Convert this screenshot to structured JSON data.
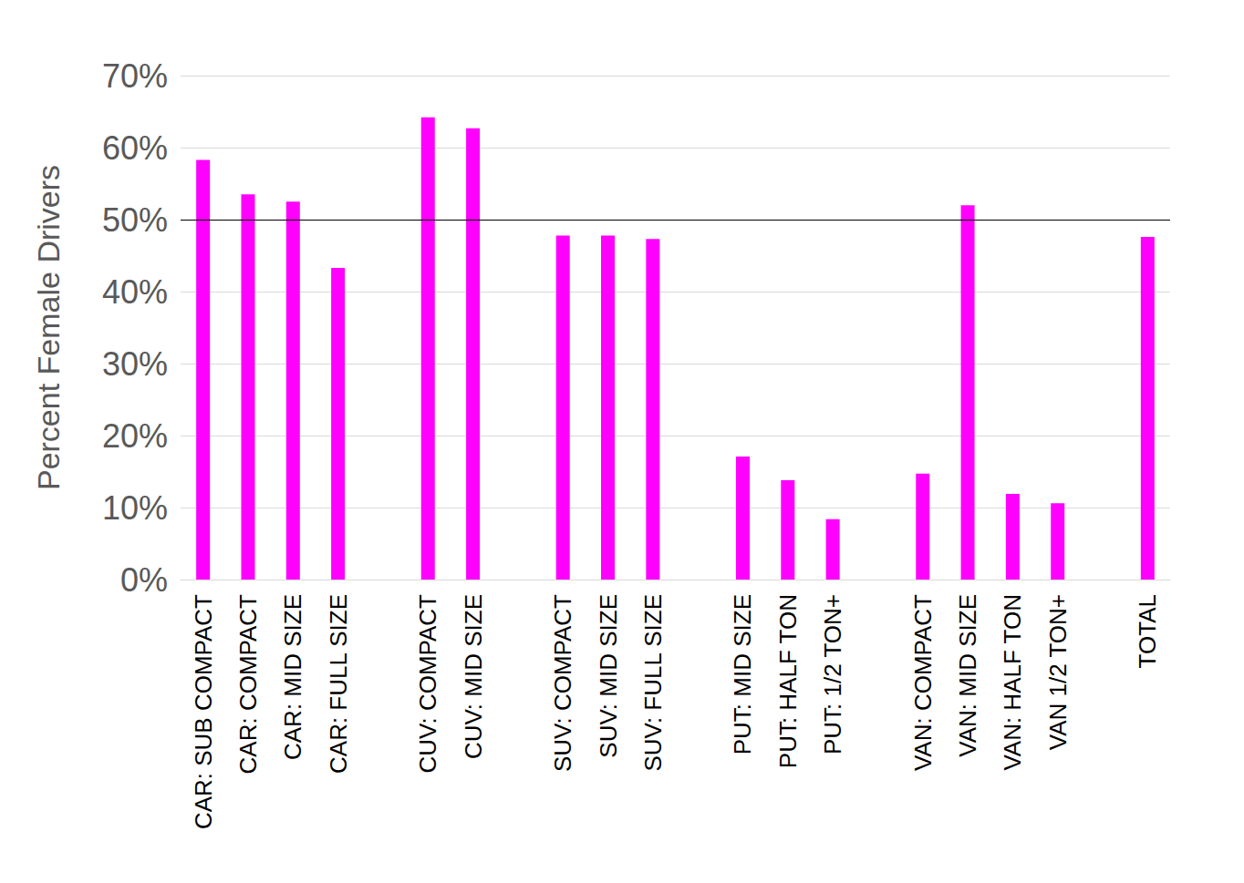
{
  "chart_data": {
    "type": "bar",
    "ylabel": "Percent Female Drivers",
    "categories": [
      "CAR: SUB COMPACT",
      "CAR: COMPACT",
      "CAR: MID SIZE",
      "CAR: FULL SIZE",
      null,
      "CUV: COMPACT",
      "CUV: MID SIZE",
      null,
      "SUV: COMPACT",
      "SUV: MID SIZE",
      "SUV: FULL SIZE",
      null,
      "PUT: MID SIZE",
      "PUT: HALF TON",
      "PUT: 1/2 TON+",
      null,
      "VAN: COMPACT",
      "VAN: MID SIZE",
      "VAN: HALF TON",
      "VAN 1/2 TON+",
      null,
      "TOTAL"
    ],
    "values": [
      58.3,
      53.5,
      52.5,
      43.3,
      null,
      64.2,
      62.7,
      null,
      47.8,
      47.8,
      47.3,
      null,
      17.1,
      13.8,
      8.4,
      null,
      14.7,
      52.0,
      11.9,
      10.6,
      null,
      47.6
    ],
    "color": "#ff00ff",
    "hline": 50,
    "ylim": [
      0,
      70
    ],
    "yticks": [
      {
        "value": 0,
        "label": "0%"
      },
      {
        "value": 10,
        "label": "10%"
      },
      {
        "value": 20,
        "label": "20%"
      },
      {
        "value": 30,
        "label": "30%"
      },
      {
        "value": 40,
        "label": "40%"
      },
      {
        "value": 50,
        "label": "50%"
      },
      {
        "value": 60,
        "label": "60%"
      },
      {
        "value": 70,
        "label": "70%"
      }
    ],
    "grid": true
  }
}
